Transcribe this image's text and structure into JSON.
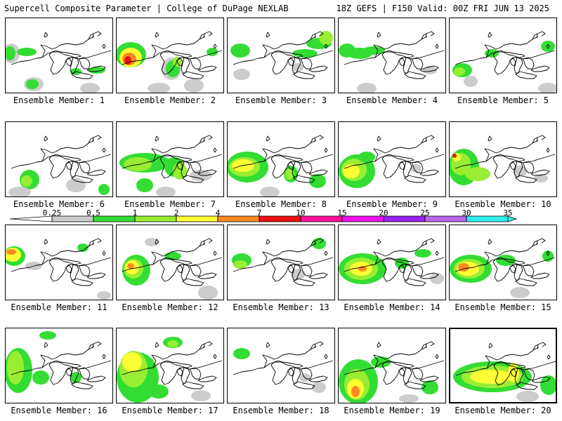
{
  "header": {
    "title_left": "Supercell Composite Parameter | College of DuPage NEXLAB",
    "title_right": "18Z GEFS | F150 Valid: 00Z FRI JUN 13 2025"
  },
  "colors": {
    "gray": "#cccccc",
    "green": "#33dd33",
    "light_green": "#99ee33",
    "yellow": "#ffff33",
    "orange": "#ff8822",
    "red": "#ee1111",
    "deep_pink": "#ff1199",
    "magenta": "#ee11ee",
    "purple": "#9922ee",
    "lavender": "#bb66ee",
    "cyan": "#33eeee"
  },
  "colorbar": {
    "ticks": [
      "0.25",
      "0.5",
      "1",
      "2",
      "4",
      "7",
      "10",
      "15",
      "20",
      "25",
      "30",
      "35"
    ],
    "segment_colors": [
      "#cccccc",
      "#33dd33",
      "#99ee33",
      "#ffff33",
      "#ff8822",
      "#ee1111",
      "#ff1199",
      "#ee11ee",
      "#9922ee",
      "#bb66ee",
      "#33eeee"
    ]
  },
  "panels": [
    {
      "label": "Ensemble Member: 1"
    },
    {
      "label": "Ensemble Member: 2"
    },
    {
      "label": "Ensemble Member: 3"
    },
    {
      "label": "Ensemble Member: 4"
    },
    {
      "label": "Ensemble Member: 5"
    },
    {
      "label": "Ensemble Member: 6"
    },
    {
      "label": "Ensemble Member: 7"
    },
    {
      "label": "Ensemble Member: 8"
    },
    {
      "label": "Ensemble Member: 9"
    },
    {
      "label": "Ensemble Member: 10"
    },
    {
      "label": "Ensemble Member: 11"
    },
    {
      "label": "Ensemble Member: 12"
    },
    {
      "label": "Ensemble Member: 13"
    },
    {
      "label": "Ensemble Member: 14"
    },
    {
      "label": "Ensemble Member: 15"
    },
    {
      "label": "Ensemble Member: 16"
    },
    {
      "label": "Ensemble Member: 17"
    },
    {
      "label": "Ensemble Member: 18"
    },
    {
      "label": "Ensemble Member: 19"
    },
    {
      "label": "Ensemble Member: 20"
    }
  ]
}
